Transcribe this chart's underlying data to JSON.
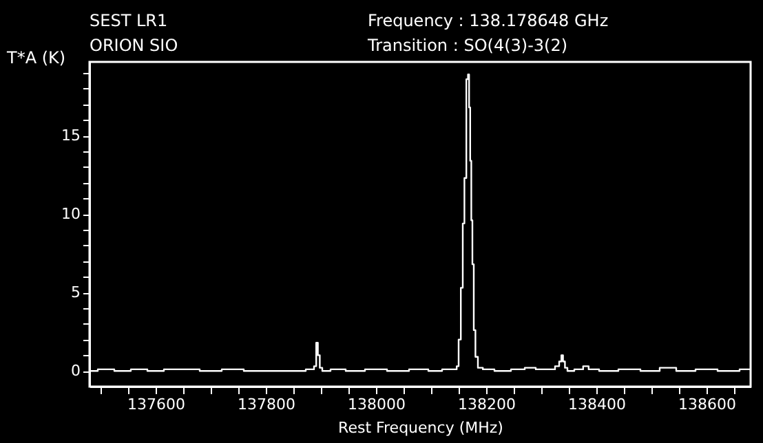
{
  "chart_data": {
    "type": "step",
    "title": "SEST LR1",
    "subtitle": "ORION SIO",
    "annotations": [
      "Frequency   : 138.178648 GHz",
      "Transition   : SO(4(3)-3(2)"
    ],
    "xlabel": "Rest Frequency (MHz)",
    "ylabel": "T*A (K)",
    "x": [
      137480,
      137510,
      137540,
      137570,
      137600,
      137630,
      137660,
      137700,
      137740,
      137780,
      137820,
      137860,
      137885,
      137890,
      137893,
      137896,
      137900,
      137905,
      137930,
      137960,
      138000,
      138040,
      138080,
      138110,
      138130,
      138145,
      138148,
      138152,
      138156,
      138159,
      138162,
      138166,
      138168,
      138170,
      138172,
      138174,
      138176,
      138179,
      138182,
      138188,
      138200,
      138230,
      138260,
      138280,
      138300,
      138320,
      138330,
      138335,
      138338,
      138341,
      138345,
      138350,
      138370,
      138382,
      138390,
      138420,
      138460,
      138500,
      138530,
      138560,
      138600,
      138640,
      138680
    ],
    "series": [
      {
        "color": "#ffffff",
        "values": [
          0,
          0.1,
          0,
          0.1,
          0,
          0.1,
          0.1,
          0,
          0.1,
          0,
          0,
          0,
          0.1,
          0.3,
          1.8,
          1.0,
          0.2,
          0,
          0.1,
          0,
          0.1,
          0,
          0.1,
          0,
          0.1,
          0.1,
          0.3,
          2.0,
          5.3,
          9.4,
          12.3,
          18.6,
          18.9,
          16.8,
          13.4,
          9.6,
          6.8,
          2.6,
          0.9,
          0.2,
          0.1,
          0,
          0.1,
          0.2,
          0.1,
          0.1,
          0.3,
          0.6,
          1.0,
          0.6,
          0.2,
          0,
          0.1,
          0.3,
          0.1,
          0,
          0.1,
          0,
          0.2,
          0,
          0.1,
          0,
          0.1
        ]
      }
    ],
    "xlim": [
      137480,
      138680
    ],
    "ylim": [
      -1,
      19.7
    ],
    "xticks": [
      {
        "value": 137500,
        "label": null
      },
      {
        "value": 137550,
        "label": null
      },
      137600,
      {
        "value": 137650,
        "label": null
      },
      {
        "value": 137700,
        "label": null
      },
      {
        "value": 137750,
        "label": null
      },
      137800,
      {
        "value": 137850,
        "label": null
      },
      {
        "value": 137900,
        "label": null
      },
      {
        "value": 137950,
        "label": null
      },
      138000,
      {
        "value": 138050,
        "label": null
      },
      {
        "value": 138100,
        "label": null
      },
      {
        "value": 138150,
        "label": null
      },
      138200,
      {
        "value": 138250,
        "label": null
      },
      {
        "value": 138300,
        "label": null
      },
      {
        "value": 138350,
        "label": null
      },
      138400,
      {
        "value": 138450,
        "label": null
      },
      {
        "value": 138500,
        "label": null
      },
      {
        "value": 138550,
        "label": null
      },
      138600,
      {
        "value": 138650,
        "label": null
      }
    ],
    "yticks": [
      0,
      {
        "value": 1,
        "label": null
      },
      {
        "value": 2,
        "label": null
      },
      {
        "value": 3,
        "label": null
      },
      {
        "value": 4,
        "label": null
      },
      5,
      {
        "value": 6,
        "label": null
      },
      {
        "value": 7,
        "label": null
      },
      {
        "value": 8,
        "label": null
      },
      {
        "value": 9,
        "label": null
      },
      10,
      {
        "value": 11,
        "label": null
      },
      {
        "value": 12,
        "label": null
      },
      {
        "value": 13,
        "label": null
      },
      {
        "value": 14,
        "label": null
      },
      15,
      {
        "value": 16,
        "label": null
      },
      {
        "value": 17,
        "label": null
      },
      {
        "value": 18,
        "label": null
      },
      {
        "value": 19,
        "label": null
      }
    ],
    "grid": false
  }
}
